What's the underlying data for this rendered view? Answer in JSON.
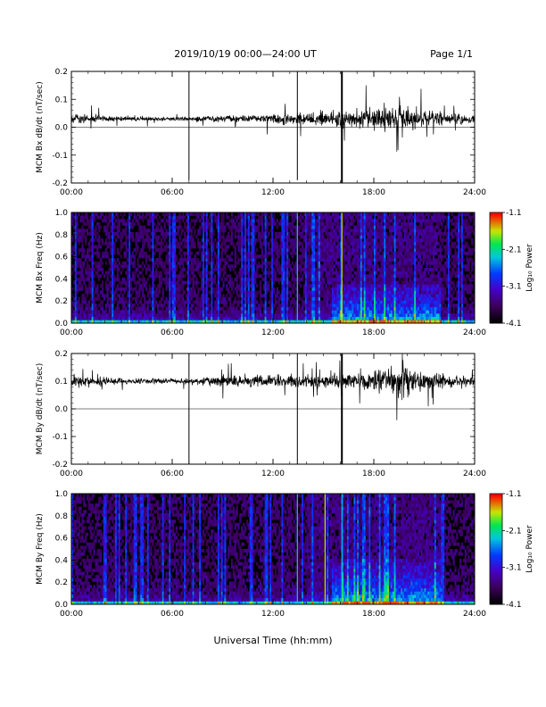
{
  "header": {
    "title": "2019/10/19  00:00—24:00 UT",
    "page": "Page 1/1"
  },
  "xaxis": {
    "label": "Universal Time (hh:mm)",
    "range_hours": [
      0,
      24
    ],
    "ticks": [
      "00:00",
      "06:00",
      "12:00",
      "18:00",
      "24:00"
    ]
  },
  "colorbar": {
    "label": "Log₁₀ Power",
    "ticks": [
      "-1.1",
      "-2.1",
      "-3.1",
      "-4.1"
    ],
    "range": [
      -4.1,
      -1.1
    ]
  },
  "chart_data": [
    {
      "type": "line",
      "ylabel": "MCM Bx dB/dt (nT/sec)",
      "ylim": [
        -0.2,
        0.2
      ],
      "yticks": [
        "-0.2",
        "-0.1",
        "0.0",
        "0.1",
        "0.2"
      ],
      "baseline": 0.03,
      "noise_by_hour": [
        [
          0,
          0.012
        ],
        [
          2,
          0.008
        ],
        [
          4,
          0.006
        ],
        [
          6,
          0.005
        ],
        [
          8,
          0.007
        ],
        [
          10,
          0.009
        ],
        [
          12,
          0.012
        ],
        [
          14,
          0.015
        ],
        [
          16,
          0.02
        ],
        [
          18,
          0.026
        ],
        [
          19.5,
          0.032
        ],
        [
          21,
          0.02
        ],
        [
          24,
          0.012
        ]
      ],
      "spikes": [
        {
          "t": 7.0,
          "y": [
            -0.19,
            0.2
          ]
        },
        {
          "t": 13.45,
          "y": [
            -0.19,
            0.2
          ]
        },
        {
          "t": 16.1,
          "y": [
            -0.2,
            0.2
          ]
        }
      ]
    },
    {
      "type": "heatmap",
      "ylabel": "MCM Bx Freq (Hz)",
      "ylim": [
        0,
        1.0
      ],
      "yticks": [
        "0.0",
        "0.2",
        "0.4",
        "0.6",
        "0.8",
        "1.0"
      ],
      "zrange": [
        -4.1,
        -1.1
      ],
      "enhanced_region": {
        "t": [
          15.5,
          22
        ],
        "f": [
          0,
          0.35
        ]
      },
      "bright_lines": [
        13.45,
        16.1
      ]
    },
    {
      "type": "line",
      "ylabel": "MCM By dB/dt (nT/sec)",
      "ylim": [
        -0.2,
        0.2
      ],
      "yticks": [
        "-0.2",
        "-0.1",
        "0.0",
        "0.1",
        "0.2"
      ],
      "baseline": 0.1,
      "noise_by_hour": [
        [
          0,
          0.015
        ],
        [
          2,
          0.01
        ],
        [
          4,
          0.007
        ],
        [
          6,
          0.006
        ],
        [
          8,
          0.01
        ],
        [
          10,
          0.018
        ],
        [
          12,
          0.014
        ],
        [
          14,
          0.016
        ],
        [
          16,
          0.018
        ],
        [
          18,
          0.022
        ],
        [
          19.7,
          0.045
        ],
        [
          21,
          0.02
        ],
        [
          24,
          0.015
        ]
      ],
      "spikes": [
        {
          "t": 7.0,
          "y": [
            -0.2,
            0.2
          ]
        },
        {
          "t": 13.45,
          "y": [
            -0.2,
            0.2
          ]
        },
        {
          "t": 16.1,
          "y": [
            -0.2,
            0.2
          ]
        }
      ]
    },
    {
      "type": "heatmap",
      "ylabel": "MCM By Freq (Hz)",
      "ylim": [
        0,
        1.0
      ],
      "yticks": [
        "0.0",
        "0.2",
        "0.4",
        "0.6",
        "0.8",
        "1.0"
      ],
      "zrange": [
        -4.1,
        -1.1
      ],
      "enhanced_region": {
        "t": [
          15.5,
          22
        ],
        "f": [
          0,
          0.4
        ]
      },
      "bright_lines": [
        13.45,
        15.1,
        16.1
      ]
    }
  ]
}
